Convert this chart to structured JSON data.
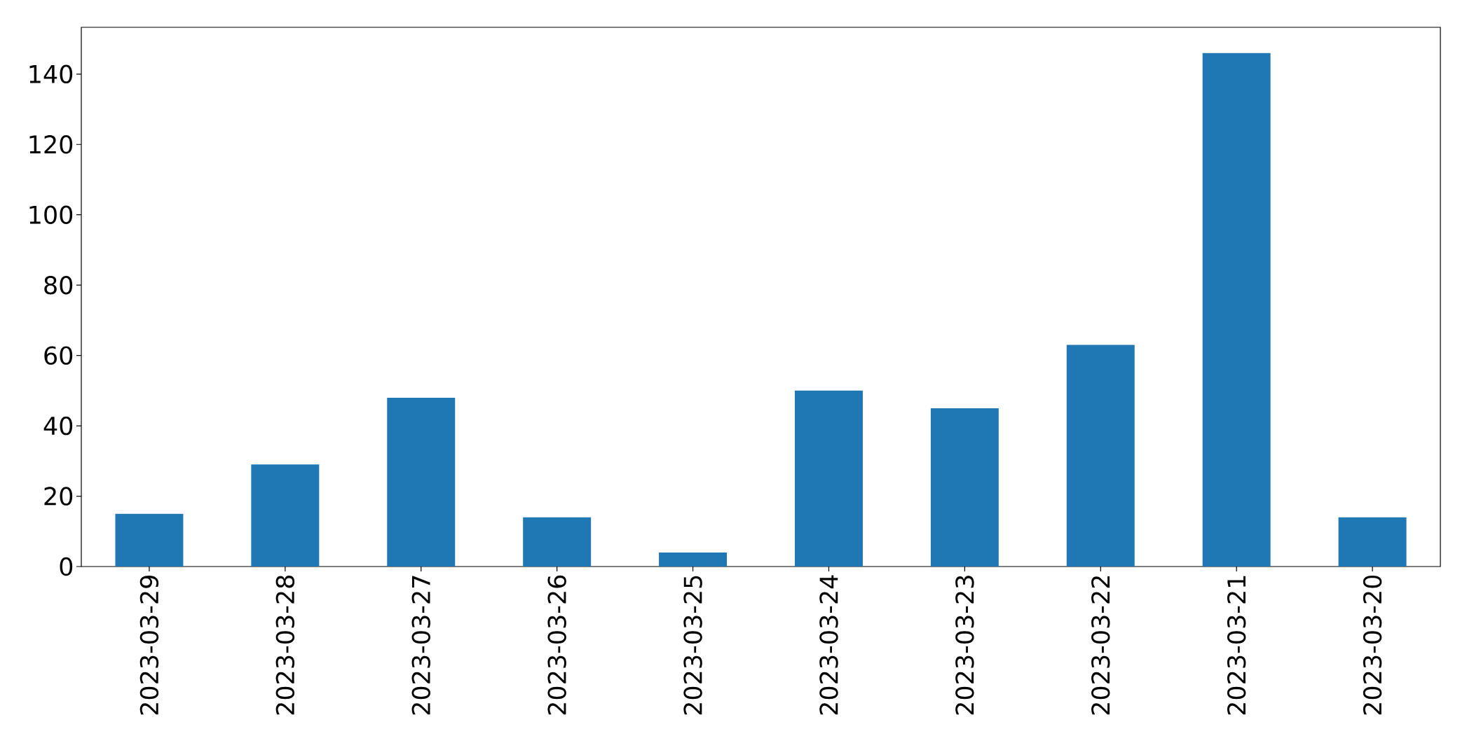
{
  "chart_data": {
    "type": "bar",
    "categories": [
      "2023-03-29",
      "2023-03-28",
      "2023-03-27",
      "2023-03-26",
      "2023-03-25",
      "2023-03-24",
      "2023-03-23",
      "2023-03-22",
      "2023-03-21",
      "2023-03-20"
    ],
    "values": [
      15,
      29,
      48,
      14,
      4,
      50,
      45,
      63,
      146,
      14
    ],
    "color": "#1f77b4",
    "ylim": [
      0,
      153.3
    ],
    "yticks": [
      0,
      20,
      40,
      60,
      80,
      100,
      120,
      140
    ]
  }
}
